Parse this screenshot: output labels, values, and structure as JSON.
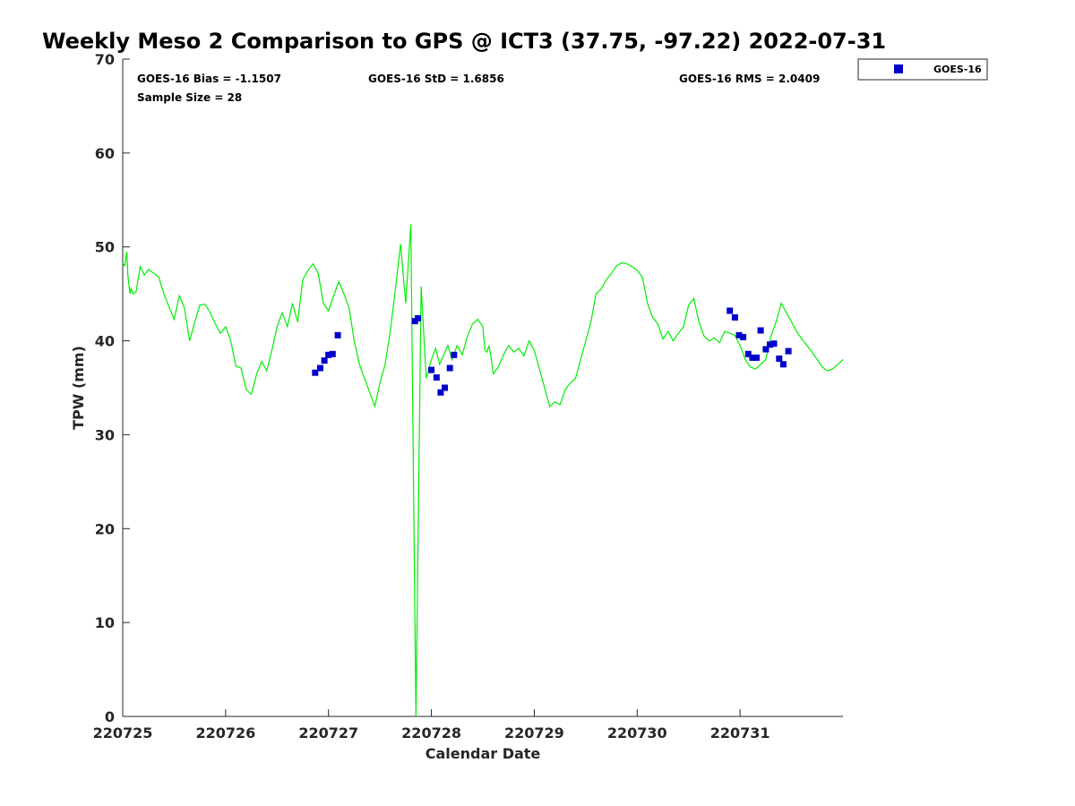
{
  "chart_data": {
    "type": "scatter",
    "title": "Weekly Meso 2 Comparison to GPS @ ICT3 (37.75, -97.22) 2022-07-31",
    "xlabel": "Calendar Date",
    "ylabel": "TPW (mm)",
    "xlim": [
      0,
      7
    ],
    "ylim": [
      0,
      70
    ],
    "x_ticks": [
      0,
      1,
      2,
      3,
      4,
      5,
      6
    ],
    "x_tick_labels": [
      "220725",
      "220726",
      "220727",
      "220728",
      "220729",
      "220730",
      "220731"
    ],
    "y_ticks": [
      0,
      10,
      20,
      30,
      40,
      50,
      60,
      70
    ],
    "y_tick_labels": [
      "0",
      "10",
      "20",
      "30",
      "40",
      "50",
      "60",
      "70"
    ],
    "grid": false,
    "legend_position": "outside-top-right",
    "stats": {
      "bias": "GOES-16 Bias = -1.1507",
      "std": "GOES-16 StD = 1.6856",
      "rms": "GOES-16 RMS = 2.0409",
      "sample": "Sample Size = 28"
    },
    "series": [
      {
        "name": "GOES-16",
        "kind": "scatter",
        "marker": "square",
        "color": "#0000cc",
        "x": [
          1.87,
          1.92,
          1.96,
          2.0,
          2.04,
          2.09,
          2.84,
          2.87,
          3.0,
          3.05,
          3.09,
          3.13,
          3.18,
          3.22,
          5.9,
          5.95,
          5.99,
          6.03,
          6.08,
          6.12,
          6.16,
          6.2,
          6.25,
          6.29,
          6.33,
          6.38,
          6.42,
          6.47
        ],
        "y": [
          36.6,
          37.1,
          37.9,
          38.5,
          38.6,
          40.6,
          42.1,
          42.4,
          36.9,
          36.1,
          34.5,
          35.0,
          37.1,
          38.5,
          43.2,
          42.5,
          40.6,
          40.4,
          38.6,
          38.2,
          38.2,
          41.1,
          39.1,
          39.6,
          39.7,
          38.1,
          37.5,
          38.9
        ]
      },
      {
        "kind": "line",
        "color": "#00ee00",
        "x": [
          0,
          0.02,
          0.04,
          0.05,
          0.07,
          0.08,
          0.1,
          0.13,
          0.17,
          0.21,
          0.25,
          0.3,
          0.35,
          0.4,
          0.45,
          0.5,
          0.55,
          0.6,
          0.65,
          0.7,
          0.75,
          0.8,
          0.85,
          0.9,
          0.95,
          1.0,
          1.05,
          1.1,
          1.15,
          1.2,
          1.25,
          1.3,
          1.35,
          1.4,
          1.45,
          1.5,
          1.55,
          1.6,
          1.65,
          1.7,
          1.75,
          1.8,
          1.85,
          1.9,
          1.95,
          2.0,
          2.05,
          2.1,
          2.15,
          2.2,
          2.25,
          2.3,
          2.35,
          2.4,
          2.45,
          2.5,
          2.55,
          2.6,
          2.65,
          2.7,
          2.75,
          2.8,
          2.85,
          2.9,
          2.95,
          3.0,
          3.04,
          3.08,
          3.12,
          3.16,
          3.2,
          3.25,
          3.3,
          3.35,
          3.4,
          3.45,
          3.5,
          3.52,
          3.54,
          3.56,
          3.58,
          3.6,
          3.65,
          3.7,
          3.75,
          3.8,
          3.85,
          3.9,
          3.95,
          4.0,
          4.05,
          4.1,
          4.15,
          4.2,
          4.25,
          4.3,
          4.35,
          4.4,
          4.45,
          4.5,
          4.55,
          4.6,
          4.65,
          4.7,
          4.75,
          4.8,
          4.85,
          4.9,
          4.95,
          5.0,
          5.05,
          5.1,
          5.15,
          5.2,
          5.25,
          5.3,
          5.35,
          5.4,
          5.45,
          5.5,
          5.55,
          5.6,
          5.65,
          5.7,
          5.75,
          5.8,
          5.85,
          5.9,
          5.95,
          6.0,
          6.05,
          6.1,
          6.15,
          6.2,
          6.25,
          6.3,
          6.35,
          6.4,
          6.45,
          6.5,
          6.55,
          6.6,
          6.65,
          6.7,
          6.75,
          6.8,
          6.85,
          6.9,
          6.95,
          7.0
        ],
        "y": [
          48.3,
          48.0,
          49.5,
          47.0,
          45.0,
          45.6,
          45.0,
          45.2,
          47.9,
          47.0,
          47.6,
          47.2,
          46.8,
          45.0,
          43.6,
          42.3,
          44.8,
          43.5,
          40.0,
          42.0,
          43.8,
          43.9,
          43.0,
          41.8,
          40.8,
          41.5,
          40.0,
          37.3,
          37.1,
          34.8,
          34.3,
          36.4,
          37.8,
          36.8,
          39.0,
          41.5,
          43.0,
          41.5,
          44.0,
          42.0,
          46.5,
          47.5,
          48.2,
          47.2,
          44.0,
          43.2,
          44.8,
          46.3,
          45.0,
          43.5,
          40.0,
          37.5,
          36.0,
          34.5,
          33.0,
          35.5,
          37.5,
          41.0,
          45.5,
          50.3,
          44.0,
          52.4,
          0.0,
          45.8,
          36.0,
          38.0,
          39.2,
          37.5,
          38.5,
          39.5,
          38.0,
          39.5,
          38.5,
          40.5,
          41.8,
          42.3,
          41.5,
          39.0,
          38.8,
          39.5,
          38.2,
          36.5,
          37.2,
          38.5,
          39.5,
          38.8,
          39.2,
          38.4,
          40.0,
          39.0,
          37.0,
          35.0,
          33.0,
          33.5,
          33.2,
          34.8,
          35.5,
          36.0,
          38.0,
          40.0,
          42.0,
          45.0,
          45.5,
          46.5,
          47.2,
          48.0,
          48.3,
          48.2,
          47.9,
          47.5,
          46.8,
          44.0,
          42.5,
          41.8,
          40.2,
          41.0,
          40.0,
          40.8,
          41.5,
          43.8,
          44.5,
          42.0,
          40.5,
          40.0,
          40.3,
          39.8,
          41.0,
          40.8,
          40.6,
          39.5,
          38.0,
          37.2,
          37.0,
          37.5,
          38.0,
          40.5,
          42.0,
          44.0,
          43.0,
          42.0,
          41.0,
          40.2,
          39.5,
          38.8,
          38.0,
          37.2,
          36.8,
          37.0,
          37.5,
          38.0
        ]
      }
    ]
  }
}
